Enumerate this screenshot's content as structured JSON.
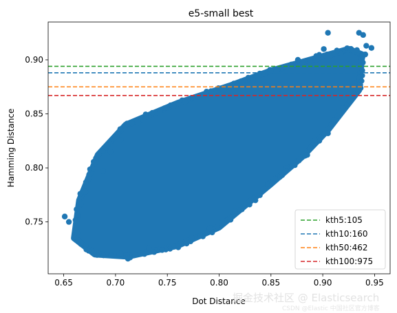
{
  "chart_data": {
    "type": "scatter",
    "title": "e5-small best",
    "xlabel": "Dot Distance",
    "ylabel": "Hamming Distance",
    "xlim": [
      0.635,
      0.965
    ],
    "ylim": [
      0.702,
      0.935
    ],
    "xticks": [
      0.65,
      0.7,
      0.75,
      0.8,
      0.85,
      0.9,
      0.95
    ],
    "xtick_labels": [
      "0.65",
      "0.70",
      "0.75",
      "0.80",
      "0.85",
      "0.90",
      "0.95"
    ],
    "yticks": [
      0.75,
      0.8,
      0.85,
      0.9
    ],
    "ytick_labels": [
      "0.75",
      "0.80",
      "0.85",
      "0.90"
    ],
    "grid": false,
    "legend_position": "lower-right",
    "point_color": "#1f77b4",
    "scatter_series": {
      "cloud_polygon": [
        [
          0.66,
          0.735
        ],
        [
          0.665,
          0.77
        ],
        [
          0.683,
          0.812
        ],
        [
          0.71,
          0.84
        ],
        [
          0.76,
          0.86
        ],
        [
          0.81,
          0.876
        ],
        [
          0.85,
          0.89
        ],
        [
          0.895,
          0.902
        ],
        [
          0.925,
          0.91
        ],
        [
          0.938,
          0.905
        ],
        [
          0.935,
          0.872
        ],
        [
          0.905,
          0.835
        ],
        [
          0.88,
          0.81
        ],
        [
          0.85,
          0.785
        ],
        [
          0.8,
          0.745
        ],
        [
          0.76,
          0.728
        ],
        [
          0.712,
          0.718
        ],
        [
          0.68,
          0.72
        ]
      ],
      "outliers": [
        [
          0.651,
          0.755
        ],
        [
          0.655,
          0.75
        ],
        [
          0.663,
          0.74
        ],
        [
          0.671,
          0.778
        ],
        [
          0.688,
          0.797
        ],
        [
          0.695,
          0.815
        ],
        [
          0.705,
          0.826
        ],
        [
          0.722,
          0.842
        ],
        [
          0.705,
          0.721
        ],
        [
          0.712,
          0.716
        ],
        [
          0.732,
          0.726
        ],
        [
          0.745,
          0.724
        ],
        [
          0.761,
          0.728
        ],
        [
          0.791,
          0.744
        ],
        [
          0.811,
          0.752
        ],
        [
          0.835,
          0.77
        ],
        [
          0.851,
          0.786
        ],
        [
          0.885,
          0.812
        ],
        [
          0.905,
          0.832
        ],
        [
          0.92,
          0.866
        ],
        [
          0.931,
          0.878
        ],
        [
          0.933,
          0.909
        ],
        [
          0.941,
          0.905
        ],
        [
          0.947,
          0.911
        ],
        [
          0.905,
          0.925
        ],
        [
          0.935,
          0.925
        ],
        [
          0.939,
          0.923
        ],
        [
          0.901,
          0.91
        ],
        [
          0.876,
          0.9
        ],
        [
          0.855,
          0.89
        ],
        [
          0.817,
          0.876
        ],
        [
          0.756,
          0.857
        ],
        [
          0.924,
          0.875
        ],
        [
          0.942,
          0.913
        ],
        [
          0.926,
          0.896
        ],
        [
          0.938,
          0.904
        ]
      ]
    },
    "reference_lines": [
      {
        "label": "kth5:105",
        "y": 0.894,
        "color": "#2ca02c"
      },
      {
        "label": "kth10:160",
        "y": 0.888,
        "color": "#1f77b4"
      },
      {
        "label": "kth50:462",
        "y": 0.875,
        "color": "#ff7f0e"
      },
      {
        "label": "kth100:975",
        "y": 0.867,
        "color": "#d62728"
      }
    ]
  },
  "watermark": {
    "line1": "掘金技术社区 @ Elasticsearch",
    "line2": "CSDN @Elastic 中国社区官方博客"
  }
}
